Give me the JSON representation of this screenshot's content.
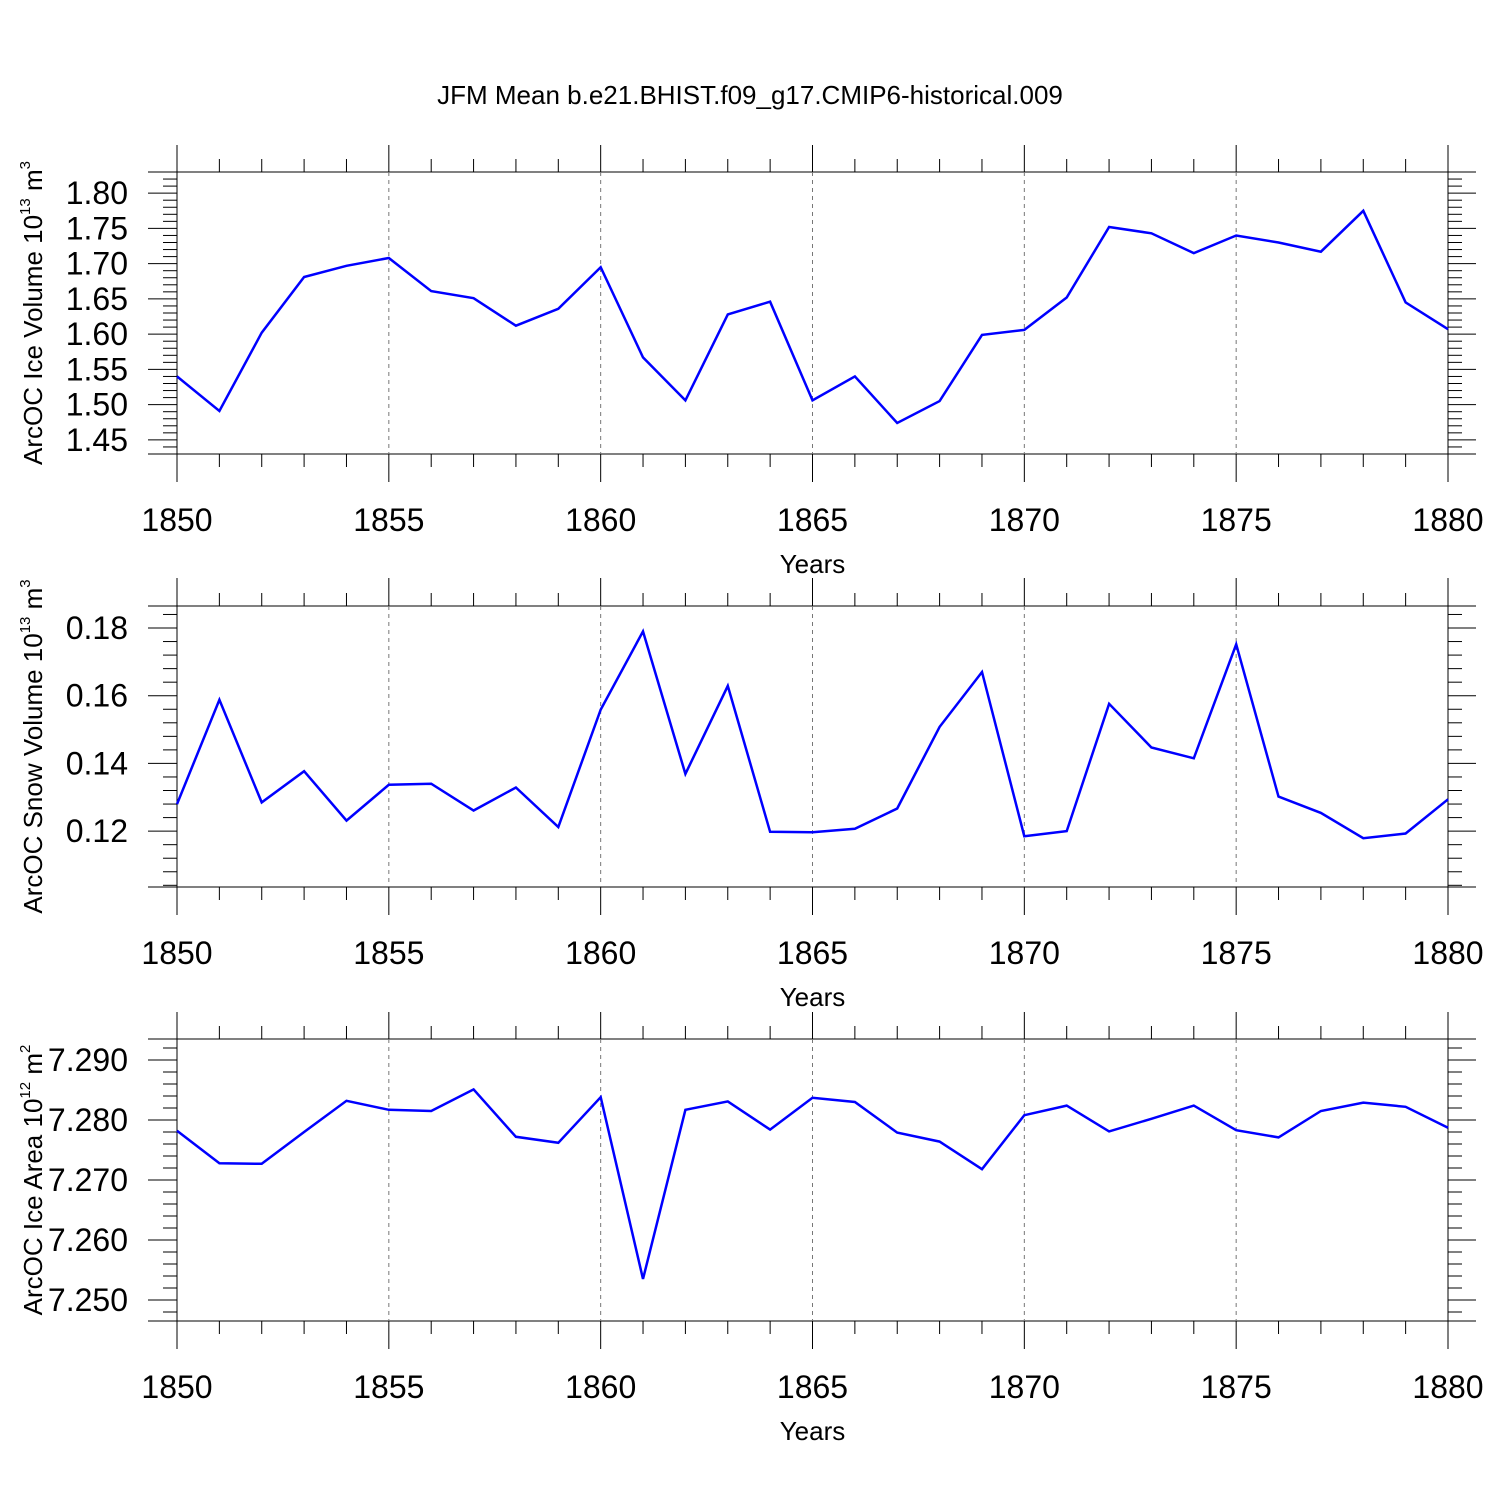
{
  "title": "JFM Mean b.e21.BHIST.f09_g17.CMIP6-historical.009",
  "line_color": "#0000ff",
  "chart_data": [
    {
      "type": "line",
      "xlabel": "Years",
      "ylabel_parts": [
        "ArcOC Ice Volume 10",
        "13",
        " m",
        "3"
      ],
      "xlim": [
        1850,
        1880
      ],
      "ylim": [
        1.43,
        1.83
      ],
      "xticks": [
        "1850",
        "1855",
        "1860",
        "1865",
        "1870",
        "1875",
        "1880"
      ],
      "yticks": [
        "1.45",
        "1.50",
        "1.55",
        "1.60",
        "1.65",
        "1.70",
        "1.75",
        "1.80"
      ],
      "x": [
        1850,
        1851,
        1852,
        1853,
        1854,
        1855,
        1856,
        1857,
        1858,
        1859,
        1860,
        1861,
        1862,
        1863,
        1864,
        1865,
        1866,
        1867,
        1868,
        1869,
        1870,
        1871,
        1872,
        1873,
        1874,
        1875,
        1876,
        1877,
        1878,
        1879,
        1880
      ],
      "values": [
        1.54,
        1.491,
        1.602,
        1.681,
        1.697,
        1.708,
        1.661,
        1.651,
        1.612,
        1.636,
        1.695,
        1.567,
        1.506,
        1.628,
        1.646,
        1.506,
        1.54,
        1.474,
        1.505,
        1.599,
        1.606,
        1.652,
        1.752,
        1.743,
        1.715,
        1.74,
        1.73,
        1.717,
        1.775,
        1.645,
        1.607
      ]
    },
    {
      "type": "line",
      "xlabel": "Years",
      "ylabel_parts": [
        "ArcOC Snow Volume 10",
        "13",
        " m",
        "3"
      ],
      "xlim": [
        1850,
        1880
      ],
      "ylim": [
        0.1035,
        0.1865
      ],
      "xticks": [
        "1850",
        "1855",
        "1860",
        "1865",
        "1870",
        "1875",
        "1880"
      ],
      "yticks": [
        "0.12",
        "0.14",
        "0.16",
        "0.18"
      ],
      "x": [
        1850,
        1851,
        1852,
        1853,
        1854,
        1855,
        1856,
        1857,
        1858,
        1859,
        1860,
        1861,
        1862,
        1863,
        1864,
        1865,
        1866,
        1867,
        1868,
        1869,
        1870,
        1871,
        1872,
        1873,
        1874,
        1875,
        1876,
        1877,
        1878,
        1879,
        1880
      ],
      "values": [
        0.128,
        0.1588,
        0.1285,
        0.1377,
        0.1231,
        0.1337,
        0.134,
        0.1261,
        0.1329,
        0.1212,
        0.1559,
        0.179,
        0.1369,
        0.1629,
        0.1198,
        0.1197,
        0.1207,
        0.1267,
        0.1508,
        0.167,
        0.1185,
        0.12,
        0.1576,
        0.1447,
        0.1415,
        0.1752,
        0.1302,
        0.1254,
        0.1179,
        0.1193,
        0.1294
      ]
    },
    {
      "type": "line",
      "xlabel": "Years",
      "ylabel_parts": [
        "ArcOC Ice Area 10",
        "12",
        " m",
        "2"
      ],
      "xlim": [
        1850,
        1880
      ],
      "ylim": [
        7.2465,
        7.2935
      ],
      "xticks": [
        "1850",
        "1855",
        "1860",
        "1865",
        "1870",
        "1875",
        "1880"
      ],
      "yticks": [
        "7.250",
        "7.260",
        "7.270",
        "7.280",
        "7.290"
      ],
      "x": [
        1850,
        1851,
        1852,
        1853,
        1854,
        1855,
        1856,
        1857,
        1858,
        1859,
        1860,
        1861,
        1862,
        1863,
        1864,
        1865,
        1866,
        1867,
        1868,
        1869,
        1870,
        1871,
        1872,
        1873,
        1874,
        1875,
        1876,
        1877,
        1878,
        1879,
        1880
      ],
      "values": [
        7.2782,
        7.2728,
        7.2727,
        7.278,
        7.2832,
        7.2817,
        7.2815,
        7.2851,
        7.2772,
        7.2762,
        7.2838,
        7.2535,
        7.2817,
        7.2831,
        7.2784,
        7.2837,
        7.283,
        7.2779,
        7.2764,
        7.2718,
        7.2808,
        7.2824,
        7.2781,
        7.2802,
        7.2824,
        7.2783,
        7.2771,
        7.2815,
        7.2829,
        7.2822,
        7.2787
      ]
    }
  ]
}
